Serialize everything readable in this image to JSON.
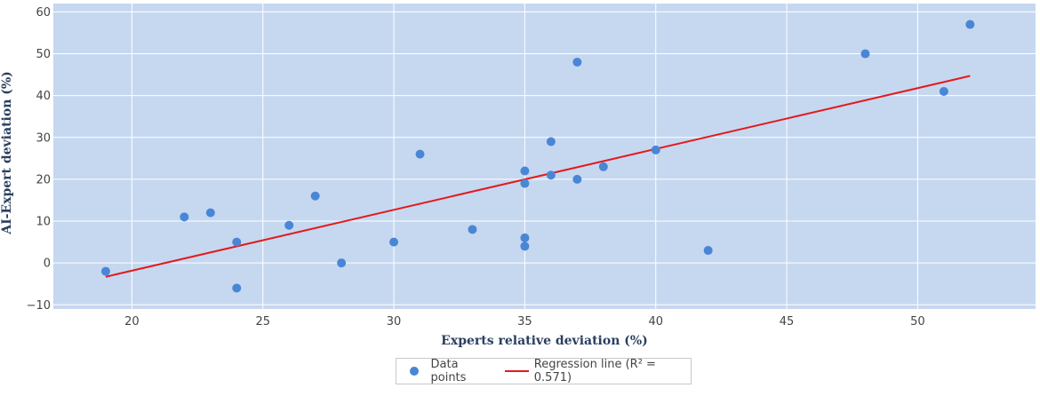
{
  "chart_data": {
    "type": "scatter",
    "xlabel": "Experts relative deviation (%)",
    "ylabel": "AI-Expert deviation (%)",
    "xlim": [
      17,
      54.5
    ],
    "ylim": [
      -11,
      62
    ],
    "xticks": [
      20,
      25,
      30,
      35,
      40,
      45,
      50
    ],
    "yticks": [
      -10,
      0,
      10,
      20,
      30,
      40,
      50,
      60
    ],
    "ytick_labels": [
      "−10",
      "0",
      "10",
      "20",
      "30",
      "40",
      "50",
      "60"
    ],
    "grid": true,
    "background_color": "#c6d8f0",
    "series": [
      {
        "name": "Data points",
        "kind": "scatter",
        "color": "#4a86d6",
        "points": [
          {
            "x": 19,
            "y": -2
          },
          {
            "x": 22,
            "y": 11
          },
          {
            "x": 23,
            "y": 12
          },
          {
            "x": 24,
            "y": 5
          },
          {
            "x": 24,
            "y": -6
          },
          {
            "x": 26,
            "y": 9
          },
          {
            "x": 27,
            "y": 16
          },
          {
            "x": 28,
            "y": 0
          },
          {
            "x": 30,
            "y": 5
          },
          {
            "x": 31,
            "y": 26
          },
          {
            "x": 33,
            "y": 8
          },
          {
            "x": 35,
            "y": 22
          },
          {
            "x": 35,
            "y": 19
          },
          {
            "x": 35,
            "y": 6
          },
          {
            "x": 35,
            "y": 4
          },
          {
            "x": 36,
            "y": 29
          },
          {
            "x": 36,
            "y": 21
          },
          {
            "x": 37,
            "y": 48
          },
          {
            "x": 37,
            "y": 20
          },
          {
            "x": 38,
            "y": 23
          },
          {
            "x": 40,
            "y": 27
          },
          {
            "x": 42,
            "y": 3
          },
          {
            "x": 48,
            "y": 50
          },
          {
            "x": 51,
            "y": 41
          },
          {
            "x": 52,
            "y": 57
          }
        ]
      },
      {
        "name": "Regression line (R² = 0.571)",
        "kind": "line",
        "color": "#e31a1c",
        "points": [
          {
            "x": 19,
            "y": -3.3
          },
          {
            "x": 52,
            "y": 44.7
          }
        ]
      }
    ],
    "legend_position": "bottom-center"
  }
}
